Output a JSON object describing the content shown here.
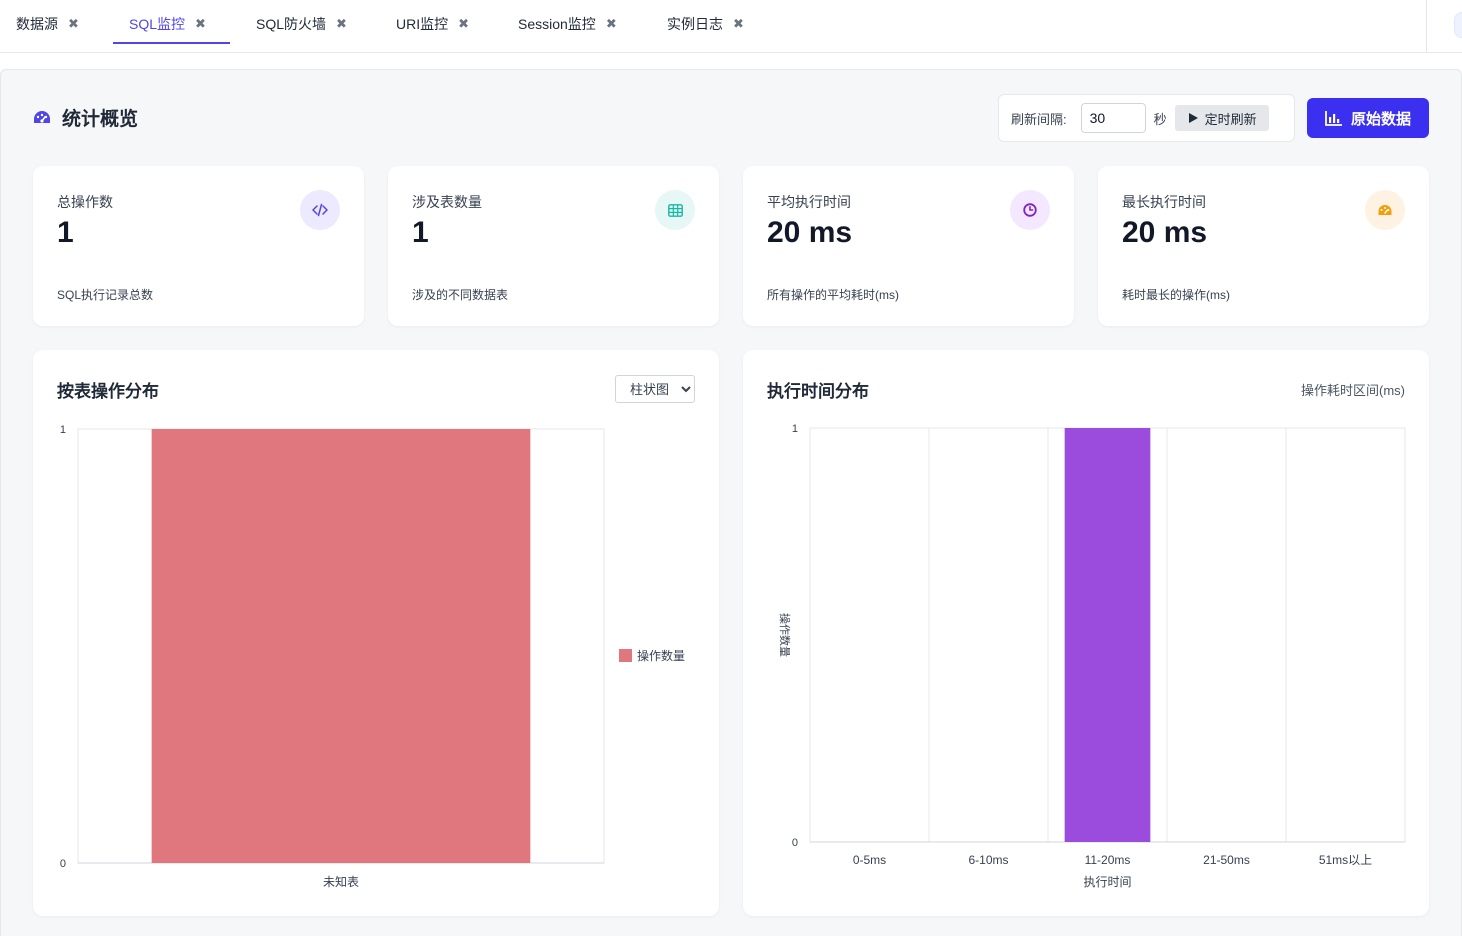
{
  "tabs": [
    {
      "label": "数据源",
      "active": false
    },
    {
      "label": "SQL监控",
      "active": true
    },
    {
      "label": "SQL防火墙",
      "active": false
    },
    {
      "label": "URI监控",
      "active": false
    },
    {
      "label": "Session监控",
      "active": false
    },
    {
      "label": "实例日志",
      "active": false
    }
  ],
  "overview": {
    "title": "统计概览",
    "refresh_label": "刷新间隔:",
    "refresh_value": "30",
    "refresh_unit": "秒",
    "timer_button": "定时刷新",
    "raw_button": "原始数据"
  },
  "stats": [
    {
      "label": "总操作数",
      "value": "1",
      "desc": "SQL执行记录总数",
      "icon": "code-icon",
      "color": "#4f46e5",
      "bg": "#ede9fe"
    },
    {
      "label": "涉及表数量",
      "value": "1",
      "desc": "涉及的不同数据表",
      "icon": "table-icon",
      "color": "#14b8a6",
      "bg": "#e6f7f5"
    },
    {
      "label": "平均执行时间",
      "value": "20 ms",
      "desc": "所有操作的平均耗时(ms)",
      "icon": "clock-icon",
      "color": "#7e22ce",
      "bg": "#f3e8ff"
    },
    {
      "label": "最长执行时间",
      "value": "20 ms",
      "desc": "耗时最长的操作(ms)",
      "icon": "gauge-icon",
      "color": "#f59e0b",
      "bg": "#fef3e2"
    }
  ],
  "table_chart": {
    "title": "按表操作分布",
    "chart_type_option": "柱状图"
  },
  "time_chart": {
    "title": "执行时间分布",
    "hint": "操作耗时区间(ms)"
  },
  "chart_data": [
    {
      "type": "bar",
      "title": "按表操作分布",
      "categories": [
        "未知表"
      ],
      "series": [
        {
          "name": "操作数量",
          "values": [
            1
          ],
          "color": "#e0767e"
        }
      ],
      "ylim": [
        0,
        1
      ],
      "yticks": [
        "0",
        "1"
      ],
      "xlabel": "",
      "ylabel": "",
      "legend": "right"
    },
    {
      "type": "bar",
      "title": "执行时间分布",
      "categories": [
        "0-5ms",
        "6-10ms",
        "11-20ms",
        "21-50ms",
        "51ms以上"
      ],
      "series": [
        {
          "name": "操作数量",
          "values": [
            0,
            0,
            1,
            0,
            0
          ],
          "color": "#9b4cdc"
        }
      ],
      "ylim": [
        0,
        1
      ],
      "yticks": [
        "0",
        "1"
      ],
      "xlabel": "执行时间",
      "ylabel": "操作数量",
      "legend": "none"
    }
  ]
}
